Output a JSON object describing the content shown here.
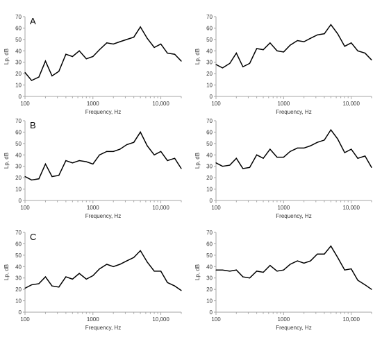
{
  "chart_data": [
    {
      "type": "line",
      "panel": "A",
      "xscale": "log",
      "xlim": [
        100,
        20000
      ],
      "ylim": [
        0,
        70
      ],
      "xlabel": "Frequency, Hz",
      "ylabel": "Lp, dB",
      "xticks": [
        100,
        1000,
        10000
      ],
      "xtick_labels": [
        "100",
        "1000",
        "10,000"
      ],
      "yticks": [
        0,
        10,
        20,
        30,
        40,
        50,
        60,
        70
      ],
      "ytick_labels": [
        "0",
        "10",
        "20",
        "30",
        "40",
        "50",
        "60",
        "70"
      ],
      "series": [
        {
          "color": "#000000",
          "x": [
            100,
            125,
            160,
            200,
            250,
            315,
            400,
            500,
            630,
            800,
            1000,
            1250,
            1600,
            2000,
            2500,
            3150,
            4000,
            5000,
            6300,
            8000,
            10000,
            12500,
            16000,
            20000
          ],
          "y": [
            21,
            14,
            17,
            31,
            18,
            22,
            37,
            35,
            40,
            33,
            35,
            41,
            47,
            46,
            48,
            50,
            52,
            61,
            51,
            43,
            46,
            38,
            37,
            31
          ]
        }
      ]
    },
    {
      "type": "line",
      "panel": "",
      "xscale": "log",
      "xlim": [
        100,
        20000
      ],
      "ylim": [
        0,
        70
      ],
      "xlabel": "Frequency, Hz",
      "ylabel": "Lp, dB",
      "xticks": [
        100,
        1000,
        10000
      ],
      "xtick_labels": [
        "100",
        "1000",
        "10,000"
      ],
      "yticks": [
        0,
        10,
        20,
        30,
        40,
        50,
        60,
        70
      ],
      "ytick_labels": [
        "0",
        "10",
        "20",
        "30",
        "40",
        "50",
        "60",
        "70"
      ],
      "series": [
        {
          "color": "#000000",
          "x": [
            100,
            125,
            160,
            200,
            250,
            315,
            400,
            500,
            630,
            800,
            1000,
            1250,
            1600,
            2000,
            2500,
            3150,
            4000,
            5000,
            6300,
            8000,
            10000,
            12500,
            16000,
            20000
          ],
          "y": [
            28,
            25,
            29,
            38,
            26,
            29,
            42,
            41,
            47,
            40,
            39,
            45,
            49,
            48,
            51,
            54,
            55,
            63,
            55,
            44,
            47,
            40,
            38,
            32
          ]
        }
      ]
    },
    {
      "type": "line",
      "panel": "B",
      "xscale": "log",
      "xlim": [
        100,
        20000
      ],
      "ylim": [
        0,
        70
      ],
      "xlabel": "Frequency, Hz",
      "ylabel": "Lp, dB",
      "xticks": [
        100,
        1000,
        10000
      ],
      "xtick_labels": [
        "100",
        "1000",
        "10,000"
      ],
      "yticks": [
        0,
        10,
        20,
        30,
        40,
        50,
        60,
        70
      ],
      "ytick_labels": [
        "0",
        "10",
        "20",
        "30",
        "40",
        "50",
        "60",
        "70"
      ],
      "series": [
        {
          "color": "#000000",
          "x": [
            100,
            125,
            160,
            200,
            250,
            315,
            400,
            500,
            630,
            800,
            1000,
            1250,
            1600,
            2000,
            2500,
            3150,
            4000,
            5000,
            6300,
            8000,
            10000,
            12500,
            16000,
            20000
          ],
          "y": [
            21,
            18,
            19,
            32,
            21,
            22,
            35,
            33,
            35,
            34,
            32,
            40,
            43,
            43,
            45,
            49,
            51,
            60,
            48,
            40,
            43,
            35,
            37,
            28
          ]
        }
      ]
    },
    {
      "type": "line",
      "panel": "",
      "xscale": "log",
      "xlim": [
        100,
        20000
      ],
      "ylim": [
        0,
        70
      ],
      "xlabel": "Frequency, Hz",
      "ylabel": "Lp, dB",
      "xticks": [
        100,
        1000,
        10000
      ],
      "xtick_labels": [
        "100",
        "1000",
        "10,000"
      ],
      "yticks": [
        0,
        10,
        20,
        30,
        40,
        50,
        60,
        70
      ],
      "ytick_labels": [
        "0",
        "10",
        "20",
        "30",
        "40",
        "50",
        "60",
        "70"
      ],
      "series": [
        {
          "color": "#000000",
          "x": [
            100,
            125,
            160,
            200,
            250,
            315,
            400,
            500,
            630,
            800,
            1000,
            1250,
            1600,
            2000,
            2500,
            3150,
            4000,
            5000,
            6300,
            8000,
            10000,
            12500,
            16000,
            20000
          ],
          "y": [
            33,
            30,
            31,
            37,
            28,
            29,
            40,
            37,
            45,
            38,
            38,
            43,
            46,
            46,
            48,
            51,
            53,
            62,
            54,
            42,
            45,
            37,
            39,
            29
          ]
        }
      ]
    },
    {
      "type": "line",
      "panel": "C",
      "xscale": "log",
      "xlim": [
        100,
        20000
      ],
      "ylim": [
        0,
        70
      ],
      "xlabel": "Frequency, Hz",
      "ylabel": "Lp, dB",
      "xticks": [
        100,
        1000,
        10000
      ],
      "xtick_labels": [
        "100",
        "1000",
        "10,000"
      ],
      "yticks": [
        0,
        10,
        20,
        30,
        40,
        50,
        60,
        70
      ],
      "ytick_labels": [
        "0",
        "10",
        "20",
        "30",
        "40",
        "50",
        "60",
        "70"
      ],
      "series": [
        {
          "color": "#000000",
          "x": [
            100,
            125,
            160,
            200,
            250,
            315,
            400,
            500,
            630,
            800,
            1000,
            1250,
            1600,
            2000,
            2500,
            3150,
            4000,
            5000,
            6300,
            8000,
            10000,
            12500,
            16000,
            20000
          ],
          "y": [
            21,
            24,
            25,
            31,
            23,
            22,
            31,
            29,
            34,
            29,
            32,
            38,
            42,
            40,
            42,
            45,
            48,
            54,
            44,
            36,
            36,
            26,
            23,
            19
          ]
        }
      ]
    },
    {
      "type": "line",
      "panel": "",
      "xscale": "log",
      "xlim": [
        100,
        20000
      ],
      "ylim": [
        0,
        70
      ],
      "xlabel": "Frequency, Hz",
      "ylabel": "Lp, dB",
      "xticks": [
        100,
        1000,
        10000
      ],
      "xtick_labels": [
        "100",
        "1000",
        "10,000"
      ],
      "yticks": [
        0,
        10,
        20,
        30,
        40,
        50,
        60,
        70
      ],
      "ytick_labels": [
        "0",
        "10",
        "20",
        "30",
        "40",
        "50",
        "60",
        "70"
      ],
      "series": [
        {
          "color": "#000000",
          "x": [
            100,
            125,
            160,
            200,
            250,
            315,
            400,
            500,
            630,
            800,
            1000,
            1250,
            1600,
            2000,
            2500,
            3150,
            4000,
            5000,
            6300,
            8000,
            10000,
            12500,
            16000,
            20000
          ],
          "y": [
            37,
            37,
            36,
            37,
            31,
            30,
            36,
            35,
            41,
            36,
            37,
            42,
            45,
            43,
            45,
            51,
            51,
            58,
            48,
            37,
            38,
            28,
            24,
            20
          ]
        }
      ]
    }
  ]
}
